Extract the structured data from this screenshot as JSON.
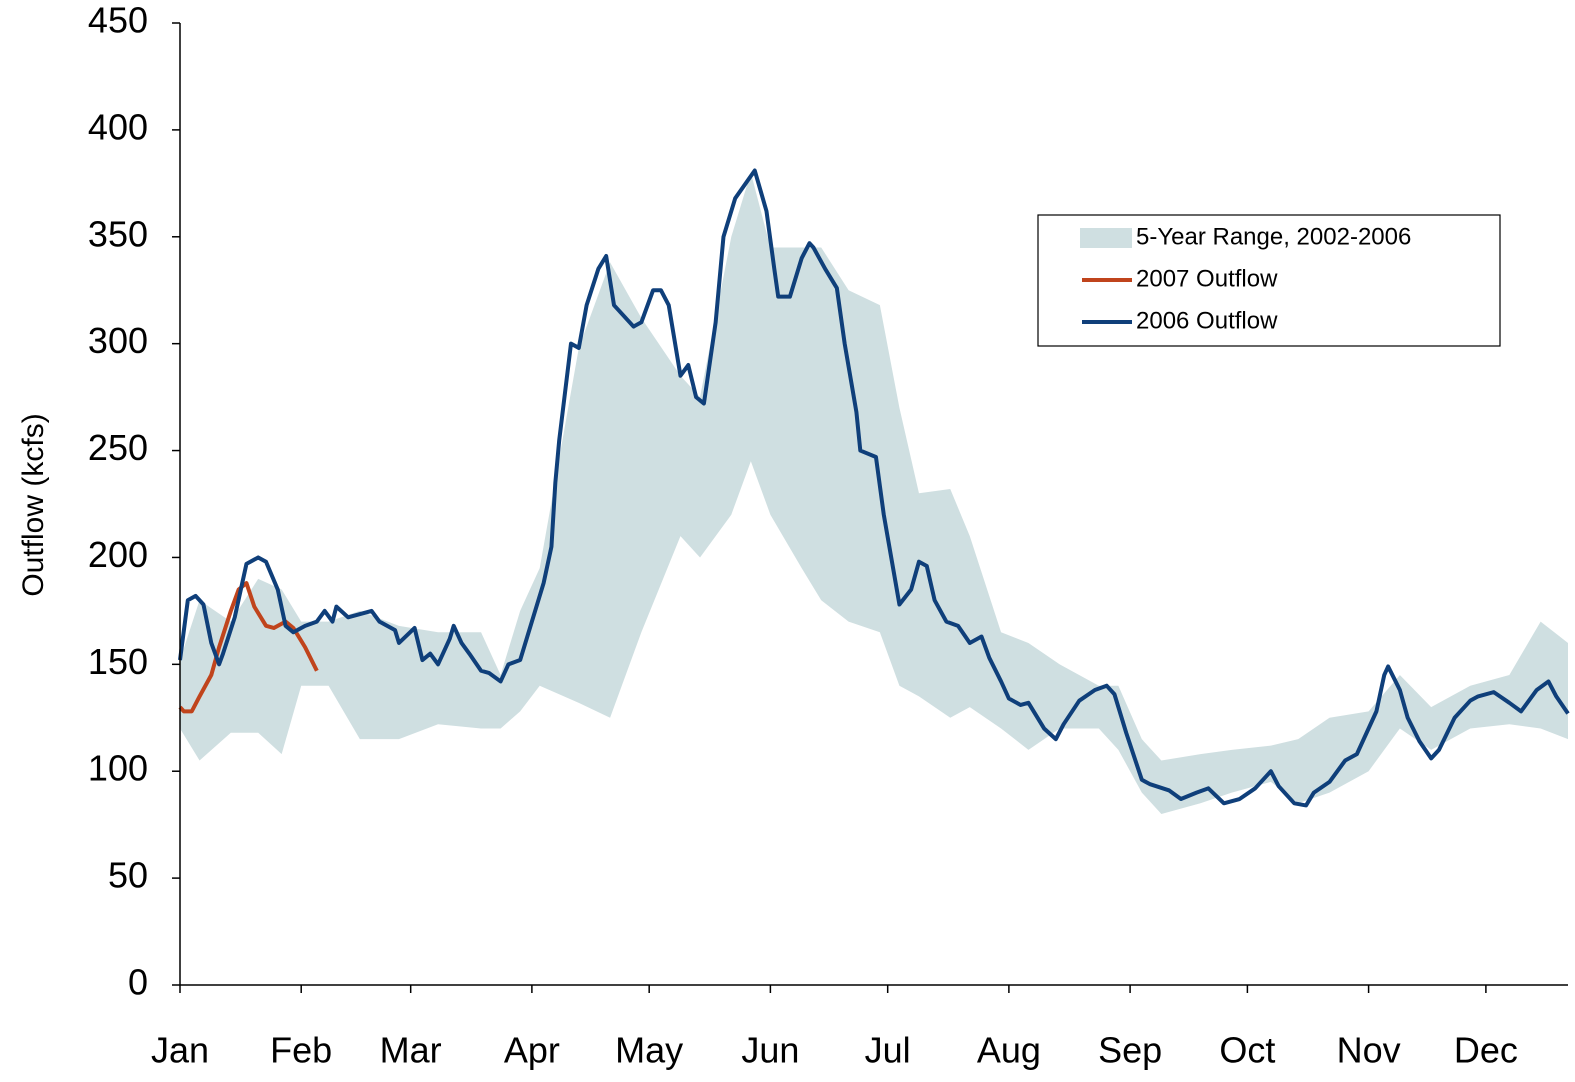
{
  "chart_data": {
    "type": "line",
    "y_label": "Outflow (kcfs)",
    "ylim": [
      0,
      450
    ],
    "yticks": [
      0,
      50,
      100,
      150,
      200,
      250,
      300,
      350,
      400,
      450
    ],
    "xlim": [
      0,
      355
    ],
    "xticks": [
      {
        "value": 0,
        "label": "Jan"
      },
      {
        "value": 31,
        "label": "Feb"
      },
      {
        "value": 59,
        "label": "Mar"
      },
      {
        "value": 90,
        "label": "Apr"
      },
      {
        "value": 120,
        "label": "May"
      },
      {
        "value": 151,
        "label": "Jun"
      },
      {
        "value": 181,
        "label": "Jul"
      },
      {
        "value": 212,
        "label": "Aug"
      },
      {
        "value": 243,
        "label": "Sep"
      },
      {
        "value": 273,
        "label": "Oct"
      },
      {
        "value": 304,
        "label": "Nov"
      },
      {
        "value": 334,
        "label": "Dec"
      }
    ],
    "series": [
      {
        "name": "5-Year Range, 2002-2006",
        "type": "range",
        "color": "#cfdfe1",
        "x": [
          0,
          5,
          13,
          20,
          26,
          31,
          38,
          46,
          56,
          66,
          77,
          82,
          87,
          92,
          102,
          110,
          118,
          128,
          133,
          141,
          146,
          151,
          159,
          164,
          171,
          179,
          184,
          189,
          197,
          202,
          210,
          217,
          225,
          235,
          240,
          246,
          251,
          261,
          269,
          279,
          286,
          294,
          304,
          312,
          320,
          330,
          340,
          348,
          355
        ],
        "lower": [
          120,
          105,
          118,
          118,
          108,
          140,
          140,
          115,
          115,
          122,
          120,
          120,
          128,
          140,
          132,
          125,
          165,
          210,
          200,
          220,
          245,
          220,
          195,
          180,
          170,
          165,
          140,
          135,
          125,
          130,
          120,
          110,
          120,
          120,
          110,
          90,
          80,
          85,
          90,
          95,
          85,
          90,
          100,
          120,
          110,
          120,
          122,
          120,
          115
        ],
        "upper": [
          152,
          180,
          170,
          190,
          185,
          170,
          170,
          175,
          168,
          165,
          165,
          145,
          175,
          195,
          298,
          338,
          312,
          285,
          275,
          350,
          380,
          345,
          345,
          345,
          325,
          318,
          270,
          230,
          232,
          210,
          165,
          160,
          150,
          140,
          140,
          115,
          105,
          108,
          110,
          112,
          115,
          125,
          128,
          145,
          130,
          140,
          145,
          170,
          160
        ]
      },
      {
        "name": "2007 Outflow",
        "color": "#c0441c",
        "x": [
          0,
          1,
          3,
          5,
          8,
          10,
          13,
          15,
          17,
          19,
          22,
          24,
          27,
          29,
          32,
          35
        ],
        "values": [
          130,
          128,
          128,
          135,
          145,
          158,
          175,
          185,
          188,
          177,
          168,
          167,
          170,
          167,
          158,
          147
        ]
      },
      {
        "name": "2006 Outflow",
        "color": "#0f3f7a",
        "x": [
          0,
          2,
          4,
          6,
          8,
          10,
          11,
          14,
          17,
          20,
          22,
          25,
          27,
          29,
          32,
          35,
          37,
          39,
          40,
          43,
          49,
          51,
          55,
          56,
          60,
          62,
          64,
          66,
          69,
          70,
          72,
          74,
          77,
          79,
          82,
          84,
          87,
          90,
          93,
          95,
          96,
          97,
          100,
          102,
          104,
          107,
          109,
          111,
          116,
          118,
          121,
          123,
          125,
          128,
          130,
          132,
          134,
          137,
          139,
          142,
          147,
          150,
          152,
          153,
          156,
          159,
          161,
          162,
          165,
          168,
          170,
          173,
          174,
          178,
          180,
          184,
          187,
          189,
          191,
          193,
          196,
          199,
          202,
          205,
          207,
          210,
          212,
          215,
          217,
          221,
          224,
          226,
          230,
          234,
          237,
          239,
          242,
          246,
          248,
          253,
          256,
          260,
          263,
          267,
          271,
          275,
          279,
          281,
          285,
          288,
          290,
          294,
          298,
          301,
          306,
          308,
          309,
          312,
          314,
          317,
          320,
          322,
          326,
          330,
          332,
          336,
          340,
          343,
          347,
          350,
          352,
          355
        ],
        "values": [
          152,
          180,
          182,
          178,
          160,
          150,
          155,
          172,
          197,
          200,
          198,
          185,
          168,
          165,
          168,
          170,
          175,
          170,
          177,
          172,
          175,
          170,
          166,
          160,
          167,
          152,
          155,
          150,
          162,
          168,
          160,
          155,
          147,
          146,
          142,
          150,
          152,
          170,
          188,
          205,
          235,
          255,
          300,
          298,
          318,
          335,
          341,
          318,
          308,
          310,
          325,
          325,
          318,
          285,
          290,
          275,
          272,
          310,
          350,
          368,
          381,
          362,
          335,
          322,
          322,
          340,
          347,
          345,
          335,
          326,
          300,
          268,
          250,
          247,
          220,
          178,
          185,
          198,
          196,
          180,
          170,
          168,
          160,
          163,
          153,
          142,
          134,
          131,
          132,
          120,
          115,
          122,
          133,
          138,
          140,
          136,
          118,
          96,
          94,
          91,
          87,
          90,
          92,
          85,
          87,
          92,
          100,
          93,
          85,
          84,
          90,
          95,
          105,
          108,
          128,
          145,
          149,
          138,
          125,
          114,
          106,
          110,
          125,
          133,
          135,
          137,
          132,
          128,
          138,
          142,
          135,
          127
        ]
      }
    ]
  }
}
